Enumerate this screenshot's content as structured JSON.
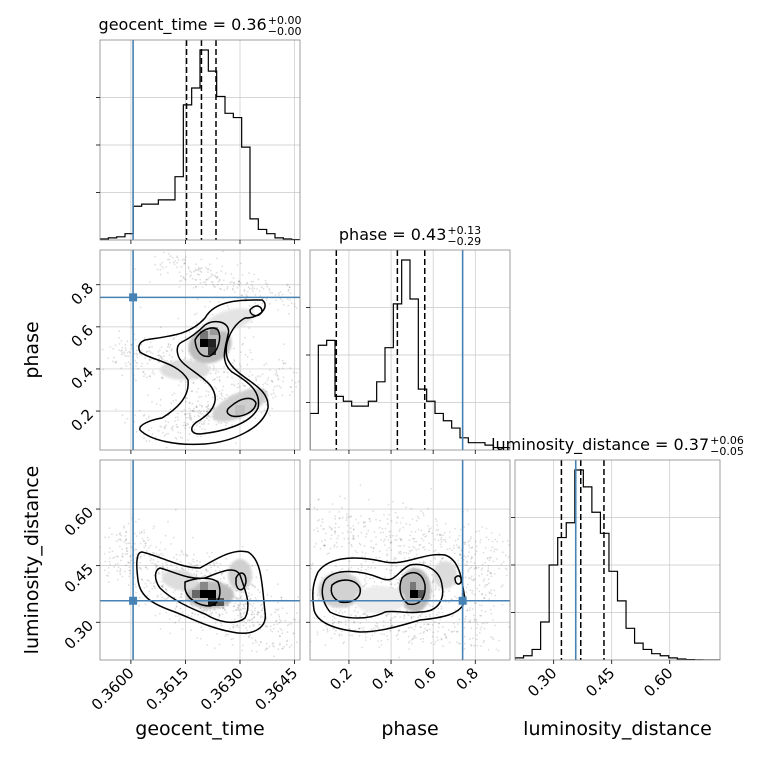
{
  "chart_data": {
    "type": "corner",
    "parameters": [
      "geocent_time",
      "phase",
      "luminosity_distance"
    ],
    "titles": [
      {
        "name": "geocent_time",
        "median": "0.36",
        "plus": "+0.00",
        "minus": "−0.00"
      },
      {
        "name": "phase",
        "median": "0.43",
        "plus": "+0.13",
        "minus": "−0.29"
      },
      {
        "name": "luminosity_distance",
        "median": "0.37",
        "plus": "+0.06",
        "minus": "−0.05"
      }
    ],
    "axis_labels": {
      "x": [
        "geocent_time",
        "phase",
        "luminosity_distance"
      ],
      "y": [
        "phase",
        "luminosity_distance"
      ]
    },
    "ranges": {
      "geocent_time": [
        0.35915,
        0.36465
      ],
      "phase": [
        0.015,
        0.965
      ],
      "luminosity_distance": [
        0.2,
        0.73
      ]
    },
    "ticks": {
      "geocent_time": {
        "values": [
          0.36,
          0.3615,
          0.363,
          0.3645
        ],
        "labels": [
          "0.3600",
          "0.3615",
          "0.3630",
          "0.3645"
        ]
      },
      "phase": {
        "values": [
          0.2,
          0.4,
          0.6,
          0.8
        ],
        "labels": [
          "0.2",
          "0.4",
          "0.6",
          "0.8"
        ]
      },
      "luminosity_distance": {
        "values": [
          0.3,
          0.45,
          0.6
        ],
        "labels": [
          "0.30",
          "0.45",
          "0.60"
        ]
      }
    },
    "truths": {
      "geocent_time": 0.36006,
      "phase": 0.74,
      "luminosity_distance": 0.357
    },
    "truth_color": "#4682b4",
    "line_color": "#000000",
    "quantiles": {
      "geocent_time": [
        0.36153,
        0.36194,
        0.36234
      ],
      "phase": [
        0.14,
        0.43,
        0.56
      ],
      "luminosity_distance": [
        0.32,
        0.37,
        0.43
      ]
    },
    "histograms": {
      "geocent_time": {
        "edges": [
          0.35915,
          0.36465
        ],
        "counts": [
          0.5,
          1,
          1.5,
          3,
          16,
          17,
          17,
          19,
          19,
          30,
          64,
          72,
          90,
          80,
          68,
          60,
          58,
          44,
          10,
          5,
          3,
          1,
          0.5,
          0.2
        ]
      },
      "phase": {
        "edges": [
          0.015,
          0.965
        ],
        "counts": [
          15,
          43,
          45,
          22,
          20,
          18,
          18,
          20,
          28,
          42,
          60,
          78,
          62,
          25,
          20,
          15,
          12,
          9,
          5,
          3,
          3,
          2,
          1,
          1
        ]
      },
      "luminosity_distance": {
        "edges": [
          0.2,
          0.73
        ],
        "counts": [
          1,
          2,
          5,
          18,
          45,
          58,
          65,
          90,
          82,
          70,
          60,
          42,
          28,
          15,
          8,
          5,
          3,
          2,
          1,
          0.5,
          0.2,
          0.1,
          0,
          0
        ]
      }
    },
    "grid": true
  }
}
